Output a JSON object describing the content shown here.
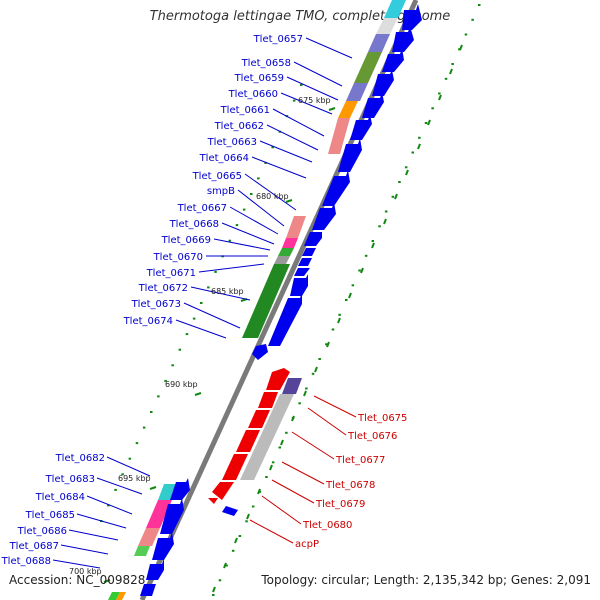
{
  "title": "Thermotoga lettingae TMO, complete genome",
  "footer": {
    "accession": "Accession: NC_009828",
    "summary": "Topology: circular; Length: 2,135,342 bp; Genes: 2,091"
  },
  "colors": {
    "forward_label": "#0000cc",
    "reverse_label": "#cc0000",
    "cds_arrow": "#0000ee",
    "reverse_arrow": "#ee0000",
    "backbone": "#7a7a7a",
    "tick_mark": "#007700"
  },
  "ticks": {
    "scale_labels": [
      "675 kbp",
      "680 kbp",
      "685 kbp",
      "690 kbp",
      "695 kbp",
      "700 kbp"
    ]
  },
  "genes_forward": [
    "Tlet_0657",
    "Tlet_0658",
    "Tlet_0659",
    "Tlet_0660",
    "Tlet_0661",
    "Tlet_0662",
    "Tlet_0663",
    "Tlet_0664",
    "Tlet_0665",
    "smpB",
    "Tlet_0667",
    "Tlet_0668",
    "Tlet_0669",
    "Tlet_0670",
    "Tlet_0671",
    "Tlet_0672",
    "Tlet_0673",
    "Tlet_0674"
  ],
  "genes_reverse": [
    "Tlet_0675",
    "Tlet_0676",
    "Tlet_0677",
    "Tlet_0678",
    "Tlet_0679",
    "Tlet_0680",
    "acpP"
  ],
  "genes_forward_lower": [
    "Tlet_0682",
    "Tlet_0683",
    "Tlet_0684",
    "Tlet_0685",
    "Tlet_0686",
    "Tlet_0687",
    "Tlet_0688"
  ]
}
